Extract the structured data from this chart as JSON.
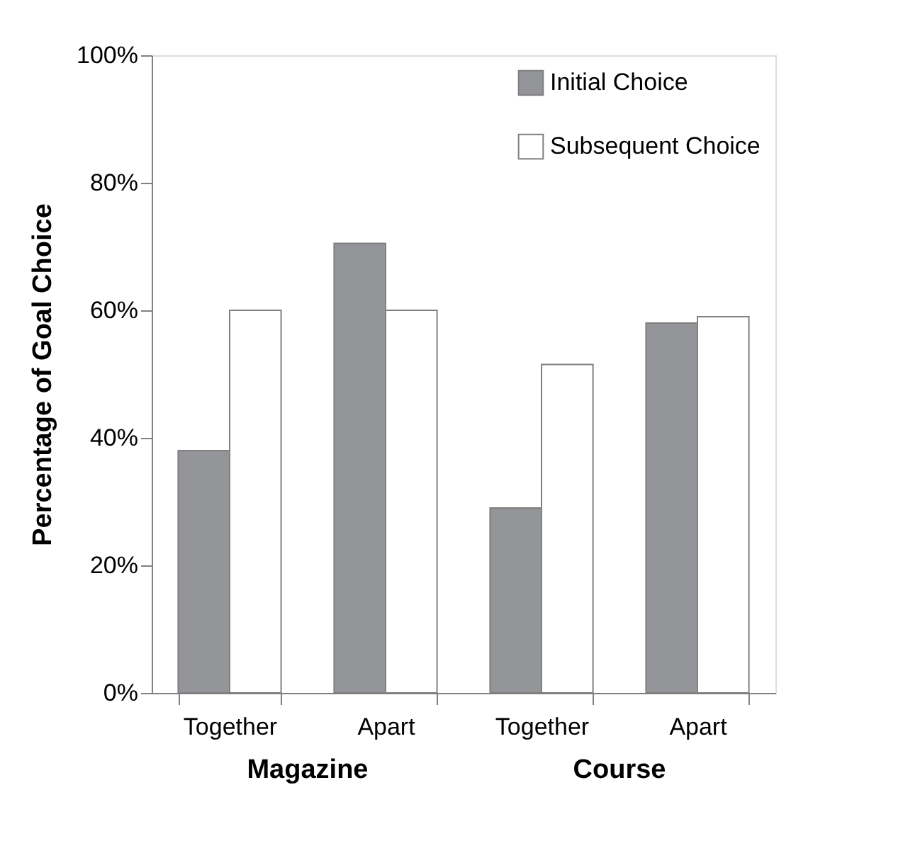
{
  "chart_data": {
    "type": "bar",
    "ylabel": "Percentage of Goal Choice",
    "categories": [
      "Together",
      "Apart",
      "Together",
      "Apart"
    ],
    "series": [
      {
        "name": "Initial Choice",
        "color": "#939598",
        "values": [
          38,
          70.5,
          29,
          58
        ]
      },
      {
        "name": "Subsequent Choice",
        "color": "#ffffff",
        "values": [
          60,
          60,
          51.5,
          59
        ]
      }
    ],
    "ylim": [
      0,
      100
    ],
    "yticks": [
      {
        "value": 0,
        "label": "0%"
      },
      {
        "value": 20,
        "label": "20%"
      },
      {
        "value": 40,
        "label": "40%"
      },
      {
        "value": 60,
        "label": "60%"
      },
      {
        "value": 80,
        "label": "80%"
      },
      {
        "value": 100,
        "label": "100%"
      }
    ],
    "annotations": [
      "Magazine",
      "Course"
    ],
    "grid": false,
    "legend": "top right"
  }
}
